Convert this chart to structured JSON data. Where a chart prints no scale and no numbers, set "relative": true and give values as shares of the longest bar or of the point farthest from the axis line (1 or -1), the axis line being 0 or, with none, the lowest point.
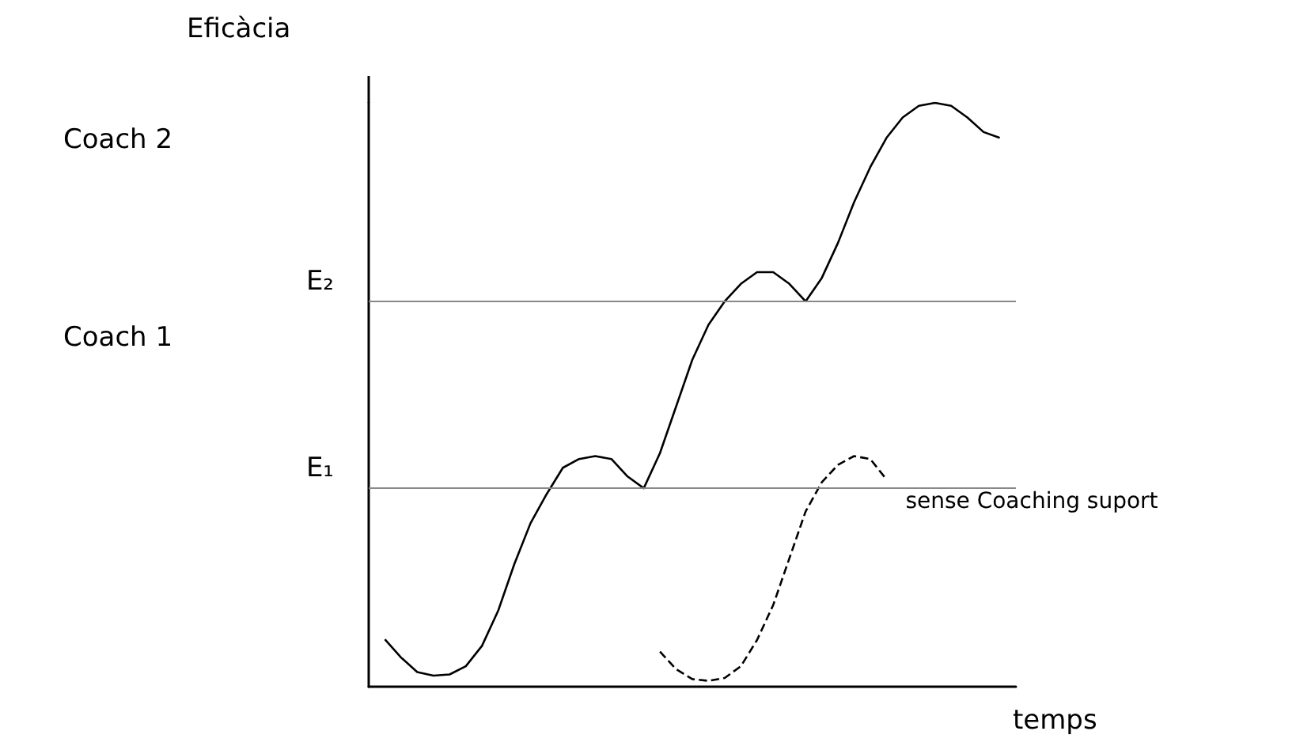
{
  "chart_data": {
    "type": "line",
    "relative": true,
    "ylabel": "Eficàcia",
    "xlabel": "temps",
    "grid": false,
    "legend": false,
    "marker": "none",
    "annotations": [
      "Coach 2",
      "Coach 1"
    ],
    "categories": [
      null,
      null,
      null,
      null,
      null,
      null,
      null,
      null,
      null,
      null,
      null,
      null,
      null,
      null,
      null,
      null,
      null,
      null,
      null,
      null,
      null,
      null,
      null,
      null,
      null,
      null,
      null,
      null,
      null,
      null,
      null,
      null,
      null,
      null,
      null,
      null,
      null,
      null,
      null,
      null,
      null
    ],
    "ref_lines": [
      {
        "axis": "y",
        "value": 0.344,
        "label": "E₁",
        "color": "#888888"
      },
      {
        "axis": "y",
        "value": 0.661,
        "label": "E₂",
        "color": "#888888"
      }
    ],
    "series": [
      {
        "color": "#000000",
        "line_style": "solid",
        "values": [
          null,
          0.081,
          0.05,
          0.025,
          0.019,
          0.021,
          0.035,
          0.07,
          0.13,
          0.21,
          0.28,
          0.33,
          0.375,
          0.39,
          0.395,
          0.39,
          0.36,
          0.34,
          0.4,
          0.48,
          0.56,
          0.62,
          0.66,
          0.69,
          0.71,
          0.71,
          0.69,
          0.66,
          0.7,
          0.76,
          0.83,
          0.89,
          0.94,
          0.975,
          0.995,
          1.0,
          0.995,
          0.975,
          0.95,
          0.94,
          null
        ]
      },
      {
        "name": "sense Coaching suport",
        "color": "#000000",
        "line_style": "dashed",
        "values": [
          null,
          null,
          null,
          null,
          null,
          null,
          null,
          null,
          null,
          null,
          null,
          null,
          null,
          null,
          null,
          null,
          null,
          null,
          0.06,
          0.03,
          0.013,
          0.01,
          0.015,
          0.035,
          0.08,
          0.14,
          0.22,
          0.3,
          0.35,
          0.38,
          0.395,
          0.39,
          0.355,
          null,
          null,
          null,
          null,
          null,
          null,
          null,
          null
        ]
      }
    ]
  }
}
